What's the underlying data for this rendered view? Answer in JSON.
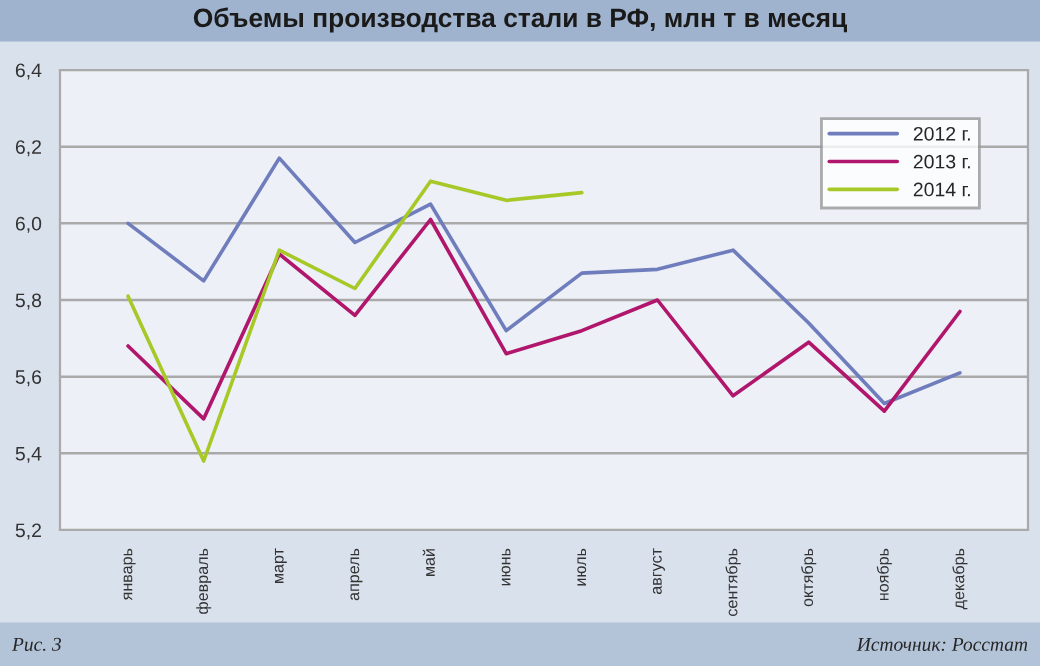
{
  "chart_data": {
    "type": "line",
    "title": "Объемы производства стали в РФ, млн т в месяц",
    "categories": [
      "январь",
      "февраль",
      "март",
      "апрель",
      "май",
      "июнь",
      "июль",
      "август",
      "сентябрь",
      "октябрь",
      "ноябрь",
      "декабрь"
    ],
    "series": [
      {
        "name": "2012 г.",
        "color": "#6f7dbd",
        "values": [
          6.0,
          5.85,
          6.17,
          5.95,
          6.05,
          5.72,
          5.87,
          5.88,
          5.93,
          5.74,
          5.53,
          5.61
        ]
      },
      {
        "name": "2013 г.",
        "color": "#b0166b",
        "values": [
          5.68,
          5.49,
          5.92,
          5.76,
          6.01,
          5.66,
          5.72,
          5.8,
          5.55,
          5.69,
          5.51,
          5.77
        ]
      },
      {
        "name": "2014 г.",
        "color": "#a6c928",
        "values": [
          5.81,
          5.38,
          5.93,
          5.83,
          6.11,
          6.06,
          6.08,
          null,
          null,
          null,
          null,
          null
        ]
      }
    ],
    "ylim": [
      5.2,
      6.4
    ],
    "yticks": [
      {
        "value": 5.2,
        "label": "5,2"
      },
      {
        "value": 5.4,
        "label": "5,4"
      },
      {
        "value": 5.6,
        "label": "5,6"
      },
      {
        "value": 5.8,
        "label": "5,8"
      },
      {
        "value": 6.0,
        "label": "6,0"
      },
      {
        "value": 6.2,
        "label": "6,2"
      },
      {
        "value": 6.4,
        "label": "6,4"
      }
    ],
    "grid": "y",
    "legend": "top right",
    "marker": "none",
    "line_style": "solid",
    "annotations": [
      "Рис. 3",
      "Источник: Росстат"
    ]
  }
}
